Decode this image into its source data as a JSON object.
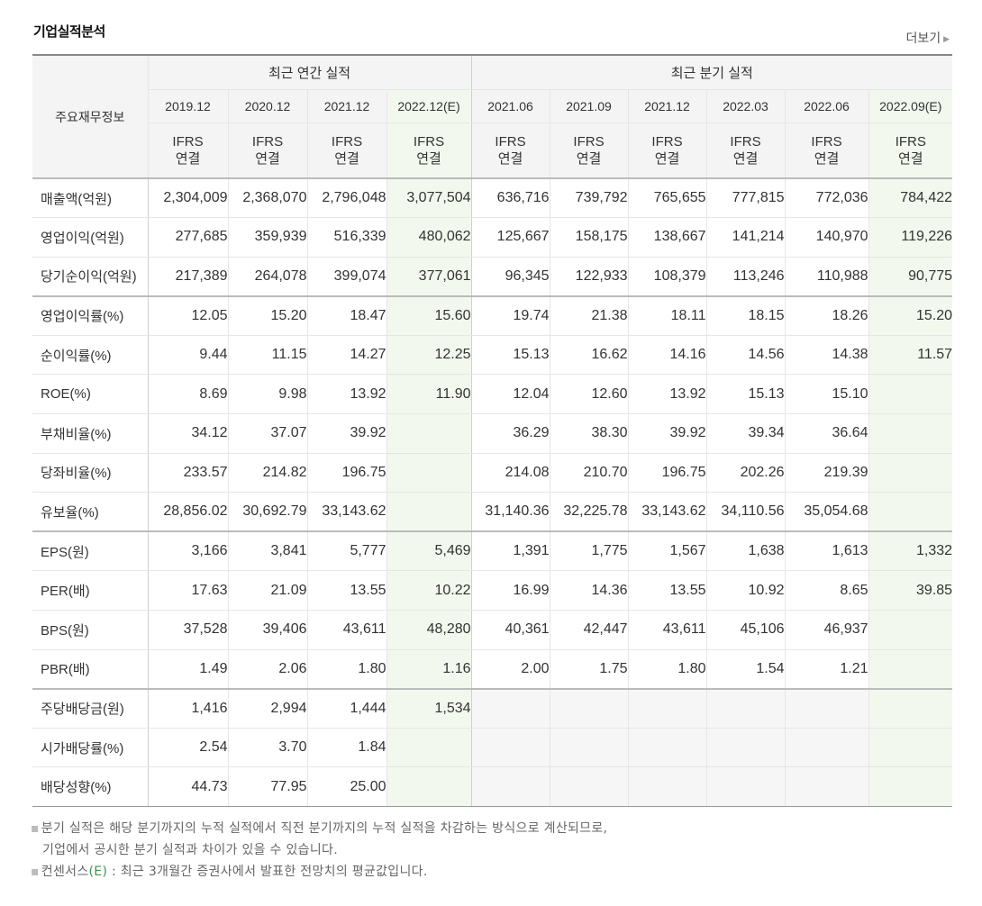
{
  "title": "기업실적분석",
  "more_label": "더보기",
  "table": {
    "corner_label": "주요재무정보",
    "annual_group": "최근 연간 실적",
    "quarter_group": "최근 분기 실적",
    "periods": [
      "2019.12",
      "2020.12",
      "2021.12",
      "2022.12(E)",
      "2021.06",
      "2021.09",
      "2021.12",
      "2022.03",
      "2022.06",
      "2022.09(E)"
    ],
    "standard_line1": "IFRS",
    "standard_line2": "연결",
    "rows": [
      {
        "label": "매출액(억원)",
        "values": [
          "2,304,009",
          "2,368,070",
          "2,796,048",
          "3,077,504",
          "636,716",
          "739,792",
          "765,655",
          "777,815",
          "772,036",
          "784,422"
        ]
      },
      {
        "label": "영업이익(억원)",
        "values": [
          "277,685",
          "359,939",
          "516,339",
          "480,062",
          "125,667",
          "158,175",
          "138,667",
          "141,214",
          "140,970",
          "119,226"
        ]
      },
      {
        "label": "당기순이익(억원)",
        "values": [
          "217,389",
          "264,078",
          "399,074",
          "377,061",
          "96,345",
          "122,933",
          "108,379",
          "113,246",
          "110,988",
          "90,775"
        ]
      },
      {
        "label": "영업이익률(%)",
        "values": [
          "12.05",
          "15.20",
          "18.47",
          "15.60",
          "19.74",
          "21.38",
          "18.11",
          "18.15",
          "18.26",
          "15.20"
        ]
      },
      {
        "label": "순이익률(%)",
        "values": [
          "9.44",
          "11.15",
          "14.27",
          "12.25",
          "15.13",
          "16.62",
          "14.16",
          "14.56",
          "14.38",
          "11.57"
        ]
      },
      {
        "label": "ROE(%)",
        "values": [
          "8.69",
          "9.98",
          "13.92",
          "11.90",
          "12.04",
          "12.60",
          "13.92",
          "15.13",
          "15.10",
          ""
        ]
      },
      {
        "label": "부채비율(%)",
        "values": [
          "34.12",
          "37.07",
          "39.92",
          "",
          "36.29",
          "38.30",
          "39.92",
          "39.34",
          "36.64",
          ""
        ]
      },
      {
        "label": "당좌비율(%)",
        "values": [
          "233.57",
          "214.82",
          "196.75",
          "",
          "214.08",
          "210.70",
          "196.75",
          "202.26",
          "219.39",
          ""
        ]
      },
      {
        "label": "유보율(%)",
        "values": [
          "28,856.02",
          "30,692.79",
          "33,143.62",
          "",
          "31,140.36",
          "32,225.78",
          "33,143.62",
          "34,110.56",
          "35,054.68",
          ""
        ]
      },
      {
        "label": "EPS(원)",
        "values": [
          "3,166",
          "3,841",
          "5,777",
          "5,469",
          "1,391",
          "1,775",
          "1,567",
          "1,638",
          "1,613",
          "1,332"
        ]
      },
      {
        "label": "PER(배)",
        "values": [
          "17.63",
          "21.09",
          "13.55",
          "10.22",
          "16.99",
          "14.36",
          "13.55",
          "10.92",
          "8.65",
          "39.85"
        ]
      },
      {
        "label": "BPS(원)",
        "values": [
          "37,528",
          "39,406",
          "43,611",
          "48,280",
          "40,361",
          "42,447",
          "43,611",
          "45,106",
          "46,937",
          ""
        ]
      },
      {
        "label": "PBR(배)",
        "values": [
          "1.49",
          "2.06",
          "1.80",
          "1.16",
          "2.00",
          "1.75",
          "1.80",
          "1.54",
          "1.21",
          ""
        ]
      },
      {
        "label": "주당배당금(원)",
        "values": [
          "1,416",
          "2,994",
          "1,444",
          "1,534",
          "",
          "",
          "",
          "",
          "",
          ""
        ]
      },
      {
        "label": "시가배당률(%)",
        "values": [
          "2.54",
          "3.70",
          "1.84",
          "",
          "",
          "",
          "",
          "",
          "",
          ""
        ]
      },
      {
        "label": "배당성향(%)",
        "values": [
          "44.73",
          "77.95",
          "25.00",
          "",
          "",
          "",
          "",
          "",
          "",
          ""
        ]
      }
    ]
  },
  "notes": {
    "line1": "분기 실적은 해당 분기까지의 누적 실적에서 직전 분기까지의 누적 실적을 차감하는 방식으로 계산되므로,",
    "line1b": "기업에서 공시한 분기 실적과 차이가 있을 수 있습니다.",
    "line2_prefix": "컨센서스",
    "line2_e": "(E)",
    "line2_suffix": ": 최근 3개월간 증권사에서 발표한 전망치의 평균값입니다."
  },
  "colors": {
    "ifrs_orange": "#ef6a24",
    "estimate_bg": "#f3f8ee",
    "header_bg": "#f4f4f4",
    "estimate_e_green": "#3a9a48"
  }
}
